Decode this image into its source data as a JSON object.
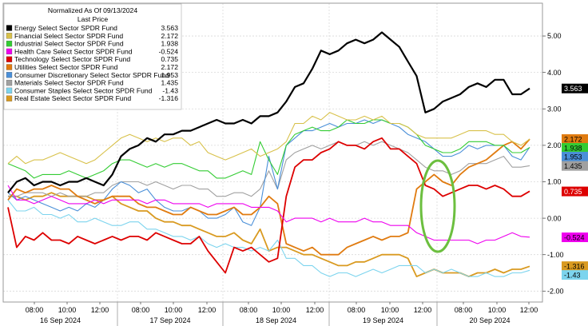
{
  "chart_data": {
    "type": "line",
    "title": "Normalized As Of 09/13/2024",
    "subtitle": "Last Price",
    "ylim": [
      -2.3,
      5.9
    ],
    "yticks": [
      -2.0,
      -1.0,
      0.0,
      1.0,
      2.0,
      3.0,
      4.0,
      5.0
    ],
    "ytick_labels": [
      "-2.00",
      "-1.00",
      "0.00",
      "1.00",
      "2.00",
      "3.00",
      "4.00",
      "5.00"
    ],
    "grid": true,
    "legend_position": "top-left",
    "x_tick_labels": [
      "08:00",
      "10:00",
      "12:00",
      "08:00",
      "10:00",
      "12:00",
      "08:00",
      "10:00",
      "12:00",
      "08:00",
      "10:00",
      "12:00",
      "08:00",
      "10:00",
      "12:00"
    ],
    "x_day_labels": [
      "16 Sep 2024",
      "17 Sep 2024",
      "18 Sep 2024",
      "19 Sep 2024",
      "20 Sep 2024"
    ],
    "series": [
      {
        "name": "Energy Select Sector SPDR Fund",
        "last": "3.563",
        "color": "#000000",
        "label_text": "#ffffff",
        "label_y": 3.56,
        "values": [
          0.7,
          1.0,
          1.1,
          0.9,
          1.0,
          1.0,
          0.9,
          1.0,
          1.0,
          1.1,
          1.0,
          0.9,
          1.2,
          1.7,
          1.9,
          2.0,
          2.2,
          2.1,
          2.3,
          2.3,
          2.4,
          2.4,
          2.5,
          2.6,
          2.7,
          2.6,
          2.6,
          2.7,
          2.6,
          2.8,
          2.8,
          2.9,
          3.2,
          3.6,
          3.7,
          4.1,
          4.6,
          4.5,
          4.6,
          4.8,
          4.9,
          4.8,
          4.9,
          5.1,
          4.9,
          4.7,
          4.3,
          3.9,
          2.9,
          3.0,
          3.2,
          3.3,
          3.4,
          3.6,
          3.7,
          3.6,
          3.8,
          3.8,
          3.4,
          3.4,
          3.56
        ]
      },
      {
        "name": "Financial Select Sector SPDR Fund",
        "last": "2.172",
        "color": "#d8c14a",
        "label_text": "#000000",
        "label_y": 2.172,
        "values": [
          1.5,
          1.7,
          1.5,
          1.6,
          1.6,
          1.7,
          1.8,
          1.7,
          1.6,
          1.5,
          1.6,
          1.8,
          2.0,
          2.2,
          2.3,
          2.2,
          2.1,
          2.2,
          2.1,
          2.2,
          2.2,
          2.0,
          2.1,
          1.8,
          1.7,
          1.6,
          1.7,
          1.8,
          1.9,
          1.7,
          1.8,
          1.9,
          2.1,
          2.6,
          2.6,
          2.8,
          2.7,
          2.9,
          2.8,
          2.7,
          2.7,
          2.8,
          2.7,
          2.8,
          2.6,
          2.6,
          2.5,
          2.3,
          2.2,
          2.2,
          2.2,
          2.2,
          2.3,
          2.4,
          2.4,
          2.4,
          2.3,
          2.3,
          2.1,
          2.0,
          2.17
        ]
      },
      {
        "name": "Industrial Select Sector SPDR Fund",
        "last": "1.938",
        "color": "#33cc33",
        "label_text": "#000000",
        "label_y": 1.938,
        "values": [
          1.5,
          1.4,
          1.3,
          1.1,
          1.2,
          1.2,
          1.2,
          1.3,
          1.2,
          1.1,
          1.2,
          1.3,
          1.5,
          1.6,
          1.6,
          1.5,
          1.4,
          1.5,
          1.4,
          1.5,
          1.5,
          1.4,
          1.3,
          1.3,
          1.1,
          1.1,
          1.2,
          1.3,
          1.2,
          2.1,
          1.6,
          1.2,
          2.0,
          2.3,
          2.4,
          2.5,
          2.4,
          2.4,
          2.5,
          2.7,
          2.6,
          2.6,
          2.7,
          2.7,
          2.6,
          2.6,
          2.5,
          2.3,
          2.0,
          1.9,
          1.8,
          1.8,
          1.9,
          2.1,
          2.1,
          2.1,
          2.0,
          2.0,
          1.8,
          1.8,
          1.94
        ]
      },
      {
        "name": "Health Care Select Sector SPDR Fund",
        "last": "-0.524",
        "color": "#ee00ee",
        "label_text": "#000000",
        "label_y": -0.524,
        "values": [
          0.9,
          0.5,
          0.5,
          0.4,
          0.5,
          0.6,
          0.5,
          0.4,
          0.4,
          0.4,
          0.5,
          0.4,
          0.5,
          0.5,
          0.5,
          0.5,
          0.4,
          0.5,
          0.5,
          0.4,
          0.4,
          0.4,
          0.4,
          0.3,
          0.4,
          0.4,
          0.4,
          0.4,
          0.3,
          0.3,
          0.3,
          0.2,
          -0.1,
          0.0,
          0.0,
          0.0,
          -0.1,
          0.0,
          -0.1,
          -0.1,
          -0.1,
          0.0,
          -0.1,
          -0.1,
          -0.2,
          -0.2,
          -0.2,
          -0.4,
          -0.5,
          -0.6,
          -0.6,
          -0.6,
          -0.6,
          -0.6,
          -0.7,
          -0.6,
          -0.6,
          -0.5,
          -0.4,
          -0.5,
          -0.52
        ]
      },
      {
        "name": "Technology Select Sector SPDR Fund",
        "last": "0.735",
        "color": "#dd0000",
        "label_text": "#ffffff",
        "label_y": 0.735,
        "values": [
          0.3,
          -0.8,
          -0.5,
          -0.6,
          -0.4,
          -0.6,
          -0.6,
          -0.7,
          -0.5,
          -0.6,
          -0.7,
          -0.6,
          -0.5,
          -0.6,
          -0.5,
          -0.5,
          -0.6,
          -0.4,
          -0.5,
          -0.6,
          -0.7,
          -0.7,
          -0.5,
          -0.9,
          -1.2,
          -1.5,
          -0.8,
          -0.9,
          -0.8,
          -1.0,
          -1.2,
          -1.1,
          0.6,
          1.4,
          1.6,
          1.6,
          1.8,
          1.9,
          2.1,
          2.0,
          2.0,
          1.9,
          2.1,
          2.2,
          1.9,
          1.9,
          1.7,
          1.5,
          0.9,
          0.8,
          0.6,
          0.7,
          0.8,
          0.9,
          0.9,
          0.8,
          0.9,
          0.8,
          0.6,
          0.6,
          0.74
        ]
      },
      {
        "name": "Utilities Select Sector SPDR Fund",
        "last": "2.172",
        "color": "#e07b10",
        "label_text": "#000000",
        "label_y": 2.172,
        "values": [
          0.5,
          0.8,
          0.7,
          0.8,
          0.8,
          0.9,
          0.8,
          0.8,
          0.6,
          0.5,
          0.4,
          0.5,
          0.6,
          0.6,
          0.6,
          0.4,
          0.3,
          0.3,
          0.2,
          0.1,
          0.1,
          0.3,
          0.2,
          0.1,
          0.1,
          0.2,
          0.3,
          0.1,
          0.1,
          0.3,
          0.6,
          0.4,
          -0.7,
          -0.8,
          -0.9,
          -0.8,
          -1.0,
          -1.0,
          -1.0,
          -0.8,
          -0.7,
          -0.6,
          -0.5,
          -0.6,
          -0.5,
          -0.5,
          -0.4,
          0.8,
          1.0,
          1.2,
          1.0,
          0.9,
          1.2,
          1.4,
          1.5,
          1.6,
          1.8,
          2.0,
          2.1,
          1.9,
          2.17
        ]
      },
      {
        "name": "Consumer Discretionary Select Sector SPDR Fund",
        "last": "1.953",
        "color": "#4a8fd8",
        "label_text": "#000000",
        "label_y": 1.953,
        "values": [
          0.7,
          0.5,
          0.6,
          0.5,
          0.4,
          0.3,
          0.2,
          0.3,
          0.2,
          0.4,
          0.3,
          0.5,
          0.8,
          1.0,
          0.9,
          0.7,
          0.8,
          0.5,
          0.3,
          0.2,
          0.2,
          0.3,
          0.2,
          0.0,
          0.0,
          0.1,
          0.3,
          -0.1,
          -0.2,
          0.3,
          1.7,
          0.8,
          2.0,
          2.2,
          2.4,
          2.4,
          2.5,
          2.6,
          2.5,
          2.6,
          2.6,
          2.7,
          2.6,
          2.7,
          2.6,
          2.5,
          2.3,
          2.2,
          2.1,
          1.9,
          1.7,
          1.7,
          1.8,
          2.0,
          1.9,
          2.0,
          2.0,
          2.0,
          1.7,
          1.6,
          1.95
        ]
      },
      {
        "name": "Materials Select Sector SPDR Fund",
        "last": "1.435",
        "color": "#a0a0a0",
        "label_text": "#000000",
        "label_y": 1.435,
        "values": [
          0.6,
          0.6,
          0.7,
          0.7,
          0.7,
          0.6,
          0.7,
          0.6,
          0.6,
          0.6,
          0.7,
          0.7,
          0.9,
          1.0,
          1.0,
          1.0,
          0.9,
          1.0,
          0.9,
          0.8,
          0.9,
          0.9,
          0.8,
          0.8,
          0.6,
          0.6,
          0.7,
          0.7,
          0.6,
          0.8,
          1.3,
          0.8,
          1.6,
          1.8,
          1.9,
          2.0,
          1.9,
          2.0,
          2.1,
          2.0,
          2.0,
          2.1,
          2.0,
          2.1,
          2.0,
          1.9,
          1.8,
          1.6,
          1.4,
          1.3,
          1.3,
          1.2,
          1.3,
          1.5,
          1.5,
          1.5,
          1.6,
          1.7,
          1.4,
          1.4,
          1.44
        ]
      },
      {
        "name": "Consumer Staples Select Sector SPDR Fund",
        "last": "-1.43",
        "color": "#7cd4ee",
        "label_text": "#000000",
        "label_y": -1.43,
        "values": [
          0.5,
          0.2,
          0.2,
          0.3,
          0.1,
          0.1,
          0.0,
          0.1,
          -0.1,
          -0.1,
          0.0,
          -0.1,
          -0.2,
          -0.2,
          -0.1,
          -0.1,
          -0.3,
          -0.3,
          -0.4,
          -0.5,
          -0.5,
          -0.6,
          -0.5,
          -0.7,
          -0.8,
          -0.7,
          -0.8,
          -0.8,
          -0.9,
          -0.8,
          -0.9,
          -0.6,
          -1.1,
          -1.1,
          -1.3,
          -1.3,
          -1.5,
          -1.6,
          -1.5,
          -1.5,
          -1.6,
          -1.5,
          -1.4,
          -1.5,
          -1.4,
          -1.3,
          -1.3,
          -1.3,
          -1.5,
          -1.4,
          -1.5,
          -1.4,
          -1.5,
          -1.6,
          -1.6,
          -1.5,
          -1.6,
          -1.6,
          -1.5,
          -1.5,
          -1.43
        ]
      },
      {
        "name": "Real Estate Select Sector SPDR Fund",
        "last": "-1.316",
        "color": "#d99a20",
        "label_text": "#000000",
        "label_y": -1.316,
        "values": [
          0.6,
          0.6,
          0.5,
          0.6,
          0.6,
          0.7,
          0.6,
          0.6,
          0.6,
          0.6,
          0.5,
          0.5,
          0.6,
          0.4,
          0.3,
          0.2,
          0.2,
          0.0,
          -0.1,
          -0.1,
          -0.2,
          -0.2,
          -0.3,
          -0.4,
          -0.5,
          -0.5,
          -0.4,
          -0.6,
          -0.7,
          -0.3,
          -0.9,
          -0.8,
          -0.8,
          -0.9,
          -1.0,
          -1.0,
          -1.1,
          -1.2,
          -1.3,
          -1.3,
          -1.2,
          -1.2,
          -1.1,
          -1.0,
          -1.0,
          -1.0,
          -1.1,
          -1.6,
          -1.5,
          -1.4,
          -1.5,
          -1.5,
          -1.5,
          -1.6,
          -1.5,
          -1.5,
          -1.4,
          -1.5,
          -1.4,
          -1.4,
          -1.32
        ]
      }
    ]
  },
  "annotation": {
    "type": "ellipse",
    "color": "#6cbf3f"
  }
}
